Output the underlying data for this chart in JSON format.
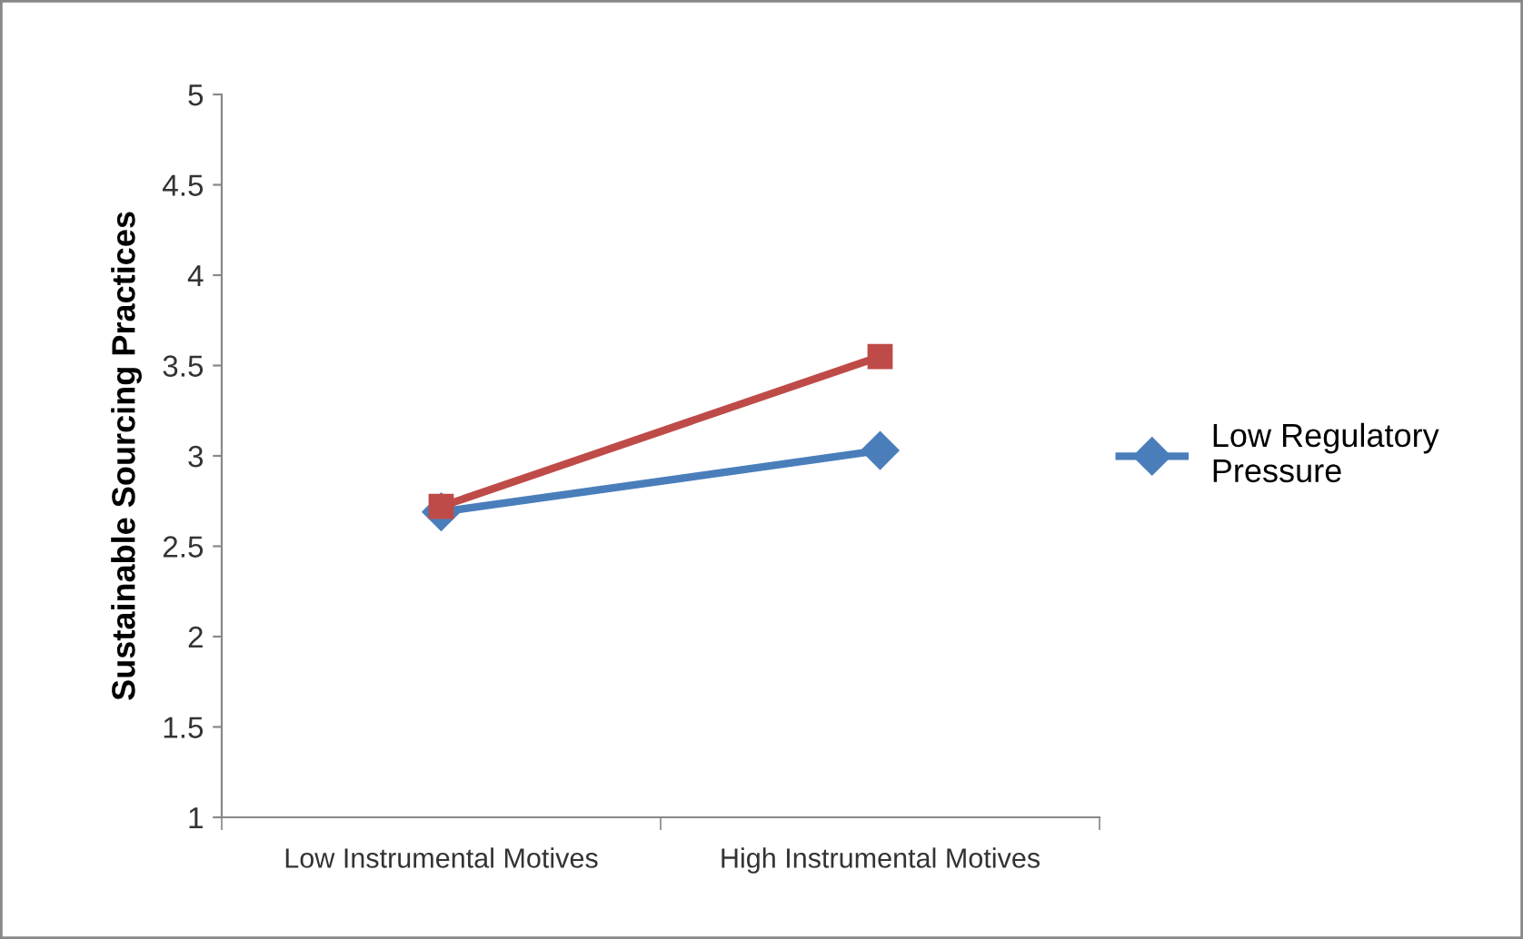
{
  "chart_data": {
    "type": "line",
    "ylabel": "Sustainable Sourcing Practices",
    "categories": [
      "Low Instrumental Motives",
      "High Instrumental Motives"
    ],
    "series": [
      {
        "name": "Low Regulatory Pressure",
        "color": "#4a7ebb",
        "values": [
          2.69,
          3.03
        ],
        "marker": "diamond"
      },
      {
        "color": "#be4b48",
        "values": [
          2.72,
          3.55
        ],
        "marker": "square"
      }
    ],
    "ylim": [
      1,
      5
    ],
    "yticks": [
      1,
      1.5,
      2,
      2.5,
      3,
      3.5,
      4,
      4.5,
      5
    ],
    "grid": false,
    "legend": "right",
    "line_style": "solid"
  }
}
